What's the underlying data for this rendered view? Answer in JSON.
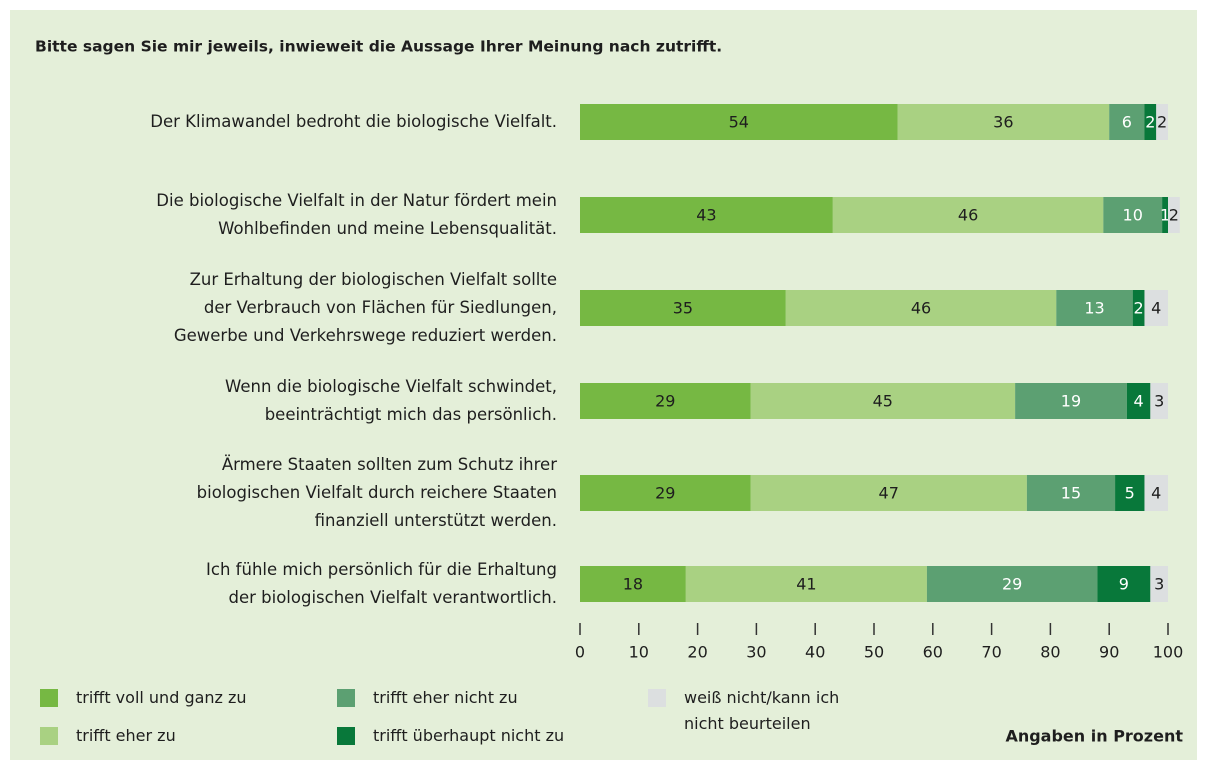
{
  "chart_data": {
    "type": "stacked-barh",
    "title": "Bitte sagen Sie mir jeweils, inwieweit die Aussage Ihrer Meinung nach zutrifft.",
    "note": "Angaben in Prozent",
    "categories": [
      "Der Klimawandel bedroht die biologische Vielfalt.",
      "Die biologische Vielfalt in der Natur fördert mein\nWohlbefinden und meine Lebensqualität.",
      "Zur Erhaltung der biologischen Vielfalt sollte\nder Verbrauch von Flächen für Siedlungen,\nGewerbe und Verkehrswege reduziert werden.",
      "Wenn die biologische Vielfalt schwindet,\nbeeinträchtigt mich das persönlich.",
      "Ärmere Staaten sollten zum Schutz ihrer\nbiologischen Vielfalt durch reichere Staaten\nfinanziell unterstützt werden.",
      "Ich fühle mich persönlich für die Erhaltung\nder biologischen Vielfalt verantwortlich."
    ],
    "series": [
      {
        "name": "trifft voll und ganz zu",
        "color": "#76b843",
        "values": [
          54,
          43,
          35,
          29,
          29,
          18
        ]
      },
      {
        "name": "trifft eher zu",
        "color": "#a9d182",
        "values": [
          36,
          46,
          46,
          45,
          47,
          41
        ]
      },
      {
        "name": "trifft eher nicht zu",
        "color": "#5ca072",
        "values": [
          6,
          10,
          13,
          19,
          15,
          29
        ]
      },
      {
        "name": "trifft überhaupt nicht zu",
        "color": "#08783a",
        "values": [
          2,
          1,
          2,
          4,
          5,
          9
        ]
      },
      {
        "name": "weiß nicht/kann ich\nnicht beurteilen",
        "color": "#dcdfe0",
        "values": [
          2,
          2,
          4,
          3,
          4,
          3
        ]
      }
    ],
    "xlim": [
      0,
      100
    ],
    "xticks": [
      0,
      10,
      20,
      30,
      40,
      50,
      60,
      70,
      80,
      90,
      100
    ]
  }
}
